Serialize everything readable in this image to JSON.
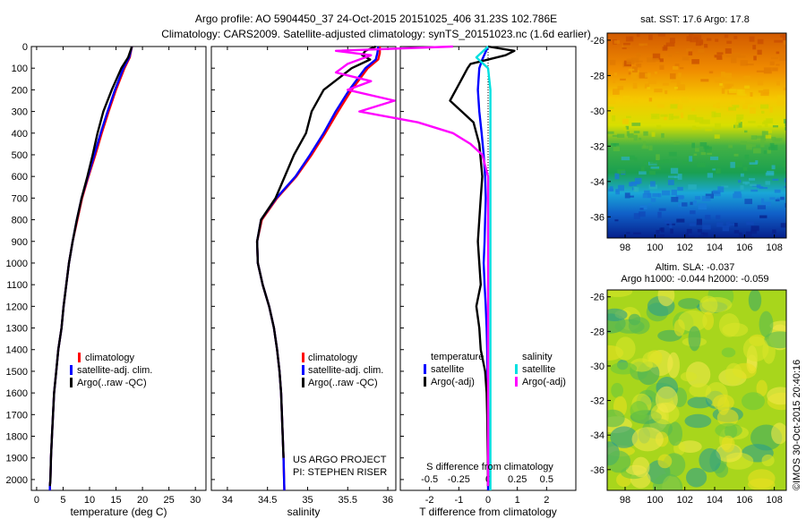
{
  "title_line1": "Argo profile: AO 5904450_37 24-Oct-2015 20151025_406 31.23S 102.786E",
  "title_line2": "Climatology: CARS2009. Satellite-adjusted climatology: synTS_20151023.nc (1.6d earlier)",
  "credit_line1": "US ARGO PROJECT",
  "credit_line2": "PI: STEPHEN RISER",
  "imos_stamp": "©IMOS 30-Oct-2015 20:40:16",
  "colors": {
    "climatology": "#ff0000",
    "satellite_adj": "#0000ff",
    "argo": "#000000",
    "salinity_satellite": "#00e0e0",
    "salinity_argo": "#ff00ff"
  },
  "chart_data": [
    {
      "type": "line",
      "xlabel": "temperature (deg C)",
      "ylabel": "",
      "xlim": [
        -1,
        32
      ],
      "ylim": [
        2050,
        0
      ],
      "xticks": [
        "0",
        "5",
        "10",
        "15",
        "20",
        "25",
        "30"
      ],
      "yticks": [
        "0",
        "100",
        "200",
        "300",
        "400",
        "500",
        "600",
        "700",
        "800",
        "900",
        "1000",
        "1100",
        "1200",
        "1300",
        "1400",
        "1500",
        "1600",
        "1700",
        "1800",
        "1900",
        "2000"
      ],
      "legend": [
        "climatology",
        "satellite-adj. clim.",
        "Argo(..raw -QC)"
      ],
      "series": [
        {
          "name": "climatology",
          "color": "#ff0000",
          "x": [
            18.0,
            17.6,
            16.6,
            15.0,
            13.6,
            12.3,
            11.1,
            9.8,
            8.6,
            7.7,
            6.8,
            6.1,
            5.6,
            5.1,
            4.7,
            4.1,
            3.7,
            3.3,
            3.1,
            2.9,
            2.7,
            2.6,
            2.5,
            2.5
          ],
          "y": [
            0,
            50,
            100,
            200,
            300,
            400,
            500,
            600,
            700,
            800,
            900,
            1000,
            1100,
            1200,
            1300,
            1400,
            1500,
            1600,
            1700,
            1800,
            1900,
            2000,
            2030,
            2050
          ]
        },
        {
          "name": "satellite-adj. clim.",
          "color": "#0000ff",
          "x": [
            18.0,
            17.5,
            16.4,
            14.8,
            13.4,
            12.1,
            10.9,
            9.7,
            8.5,
            7.6,
            6.8,
            6.1,
            5.6,
            5.1,
            4.7,
            4.1,
            3.7,
            3.3,
            3.1,
            2.9,
            2.7,
            2.6,
            2.5,
            2.5
          ],
          "y": [
            0,
            50,
            100,
            200,
            300,
            400,
            500,
            600,
            700,
            800,
            900,
            1000,
            1100,
            1200,
            1300,
            1400,
            1500,
            1600,
            1700,
            1800,
            1900,
            2000,
            2030,
            2050
          ]
        },
        {
          "name": "Argo(..raw -QC)",
          "color": "#000000",
          "x": [
            18.0,
            17.3,
            16.0,
            14.2,
            12.6,
            11.5,
            10.6,
            9.6,
            8.5,
            7.6,
            6.8,
            6.1,
            5.6,
            5.1,
            4.7,
            4.1,
            3.7,
            3.3,
            3.1,
            2.9,
            2.7,
            2.6,
            2.5
          ],
          "y": [
            0,
            50,
            100,
            200,
            300,
            400,
            500,
            600,
            700,
            800,
            900,
            1000,
            1100,
            1200,
            1300,
            1400,
            1500,
            1600,
            1700,
            1800,
            1900,
            2000,
            2030
          ]
        }
      ]
    },
    {
      "type": "line",
      "xlabel": "salinity",
      "xlim": [
        33.8,
        36.1
      ],
      "ylim": [
        2050,
        0
      ],
      "xticks": [
        "34",
        "34.5",
        "35",
        "35.5",
        "36"
      ],
      "legend": [
        "climatology",
        "satellite-adj. clim.",
        "Argo(..raw -QC)"
      ],
      "series": [
        {
          "name": "climatology",
          "color": "#ff0000",
          "x": [
            35.9,
            35.9,
            35.88,
            35.75,
            35.55,
            35.38,
            35.22,
            35.05,
            34.86,
            34.62,
            34.43,
            34.37,
            34.38,
            34.44,
            34.52,
            34.58,
            34.62,
            34.65,
            34.67,
            34.68,
            34.69,
            34.7,
            34.71
          ],
          "y": [
            0,
            30,
            60,
            100,
            200,
            300,
            400,
            500,
            600,
            700,
            800,
            900,
            1000,
            1100,
            1200,
            1300,
            1400,
            1500,
            1600,
            1700,
            1800,
            1900,
            2050
          ]
        },
        {
          "name": "satellite-adj. clim.",
          "color": "#0000ff",
          "x": [
            35.88,
            35.87,
            35.85,
            35.72,
            35.52,
            35.35,
            35.2,
            35.03,
            34.85,
            34.61,
            34.42,
            34.37,
            34.38,
            34.44,
            34.52,
            34.58,
            34.62,
            34.65,
            34.67,
            34.68,
            34.69,
            34.7,
            34.71
          ],
          "y": [
            0,
            30,
            60,
            100,
            200,
            300,
            400,
            500,
            600,
            700,
            800,
            900,
            1000,
            1100,
            1200,
            1300,
            1400,
            1500,
            1600,
            1700,
            1800,
            1900,
            2050
          ]
        },
        {
          "name": "Argo(..raw -QC)",
          "color": "#000000",
          "x": [
            35.85,
            35.72,
            35.68,
            35.78,
            35.55,
            35.2,
            35.05,
            34.98,
            34.83,
            34.6,
            34.42,
            34.37,
            34.38,
            34.44,
            34.52,
            34.58,
            34.62,
            34.65,
            34.67,
            34.68,
            34.69,
            34.7
          ],
          "y": [
            0,
            20,
            40,
            60,
            100,
            200,
            300,
            400,
            500,
            700,
            800,
            900,
            1000,
            1100,
            1200,
            1300,
            1400,
            1500,
            1600,
            1700,
            1800,
            1900
          ]
        }
      ]
    },
    {
      "type": "line",
      "xlabel": "T difference from climatology",
      "xlabel_top": "S difference from climatology",
      "xlim": [
        -3,
        3
      ],
      "ylim": [
        2050,
        0
      ],
      "xticks": [
        "-2",
        "-1",
        "0",
        "1",
        "2"
      ],
      "xticks_top": [
        "-0.5",
        "-0.25",
        "0",
        "0.25",
        "0.5"
      ],
      "legend_groups": [
        "temperature",
        "salinity"
      ],
      "legend": [
        "satellite",
        "Argo(-adj)",
        "satellite",
        "Argo(-adj)"
      ],
      "series": [
        {
          "name": "satellite",
          "group": "temperature",
          "color": "#0000ff",
          "x": [
            0.0,
            -0.1,
            -0.2,
            -0.3,
            -0.35,
            -0.3,
            -0.22,
            -0.15,
            -0.1,
            -0.08,
            -0.1,
            -0.12,
            -0.15,
            -0.12,
            -0.08,
            -0.05,
            -0.03,
            -0.02,
            -0.01,
            0.0,
            0.0,
            0.0
          ],
          "y": [
            0,
            30,
            60,
            100,
            200,
            300,
            400,
            500,
            600,
            700,
            800,
            900,
            1000,
            1100,
            1200,
            1300,
            1400,
            1500,
            1600,
            1700,
            1900,
            2050
          ]
        },
        {
          "name": "Argo(-adj)",
          "group": "temperature",
          "color": "#000000",
          "x": [
            0.0,
            0.9,
            0.6,
            -0.6,
            -0.7,
            -0.9,
            -1.3,
            -0.5,
            -0.3,
            -0.2,
            -0.25,
            -0.3,
            -0.35,
            -0.3,
            -0.25,
            -0.4,
            -0.3,
            -0.25,
            -0.1,
            -0.05,
            -0.03,
            -0.02,
            -0.01,
            0.0
          ],
          "y": [
            0,
            20,
            40,
            80,
            100,
            150,
            250,
            350,
            450,
            600,
            700,
            800,
            900,
            1000,
            1100,
            1200,
            1300,
            1400,
            1500,
            1600,
            1700,
            1800,
            1900,
            2030
          ]
        },
        {
          "name": "satellite",
          "group": "salinity",
          "color": "#00e0e0",
          "x": [
            0.0,
            -0.1,
            0.0,
            0.02,
            0.02,
            0.02,
            0.02,
            0.02,
            0.02,
            0.02,
            0.02,
            0.02,
            0.02,
            0.02
          ],
          "y": [
            0,
            50,
            100,
            200,
            400,
            600,
            800,
            1000,
            1200,
            1400,
            1600,
            1800,
            1900,
            2050
          ]
        },
        {
          "name": "Argo(-adj)",
          "group": "salinity",
          "color": "#ff00ff",
          "x": [
            -0.3,
            -1.3,
            -1.0,
            -1.2,
            -1.3,
            -1.0,
            -1.2,
            -0.8,
            -1.1,
            -0.6,
            -0.3,
            -0.15,
            -0.05,
            0.0,
            0.0,
            0.0
          ],
          "y": [
            0,
            20,
            40,
            80,
            120,
            160,
            200,
            250,
            300,
            350,
            400,
            450,
            500,
            600,
            1000,
            2030
          ]
        }
      ]
    },
    {
      "type": "heatmap",
      "title": "sat. SST: 17.6 Argo: 17.8",
      "xticks": [
        "98",
        "100",
        "102",
        "104",
        "106",
        "108"
      ],
      "yticks": [
        "-26",
        "-28",
        "-30",
        "-32",
        "-34",
        "-36"
      ],
      "xlim": [
        96.8,
        108.8
      ],
      "ylim": [
        -37.2,
        -25.6
      ]
    },
    {
      "type": "heatmap",
      "title": "Altim. SLA: -0.037",
      "subtitle": "Argo h1000: -0.044 h2000: -0.059",
      "xticks": [
        "98",
        "100",
        "102",
        "104",
        "106",
        "108"
      ],
      "yticks": [
        "-26",
        "-28",
        "-30",
        "-32",
        "-34",
        "-36"
      ],
      "xlim": [
        96.8,
        108.8
      ],
      "ylim": [
        -37.2,
        -25.6
      ]
    }
  ]
}
